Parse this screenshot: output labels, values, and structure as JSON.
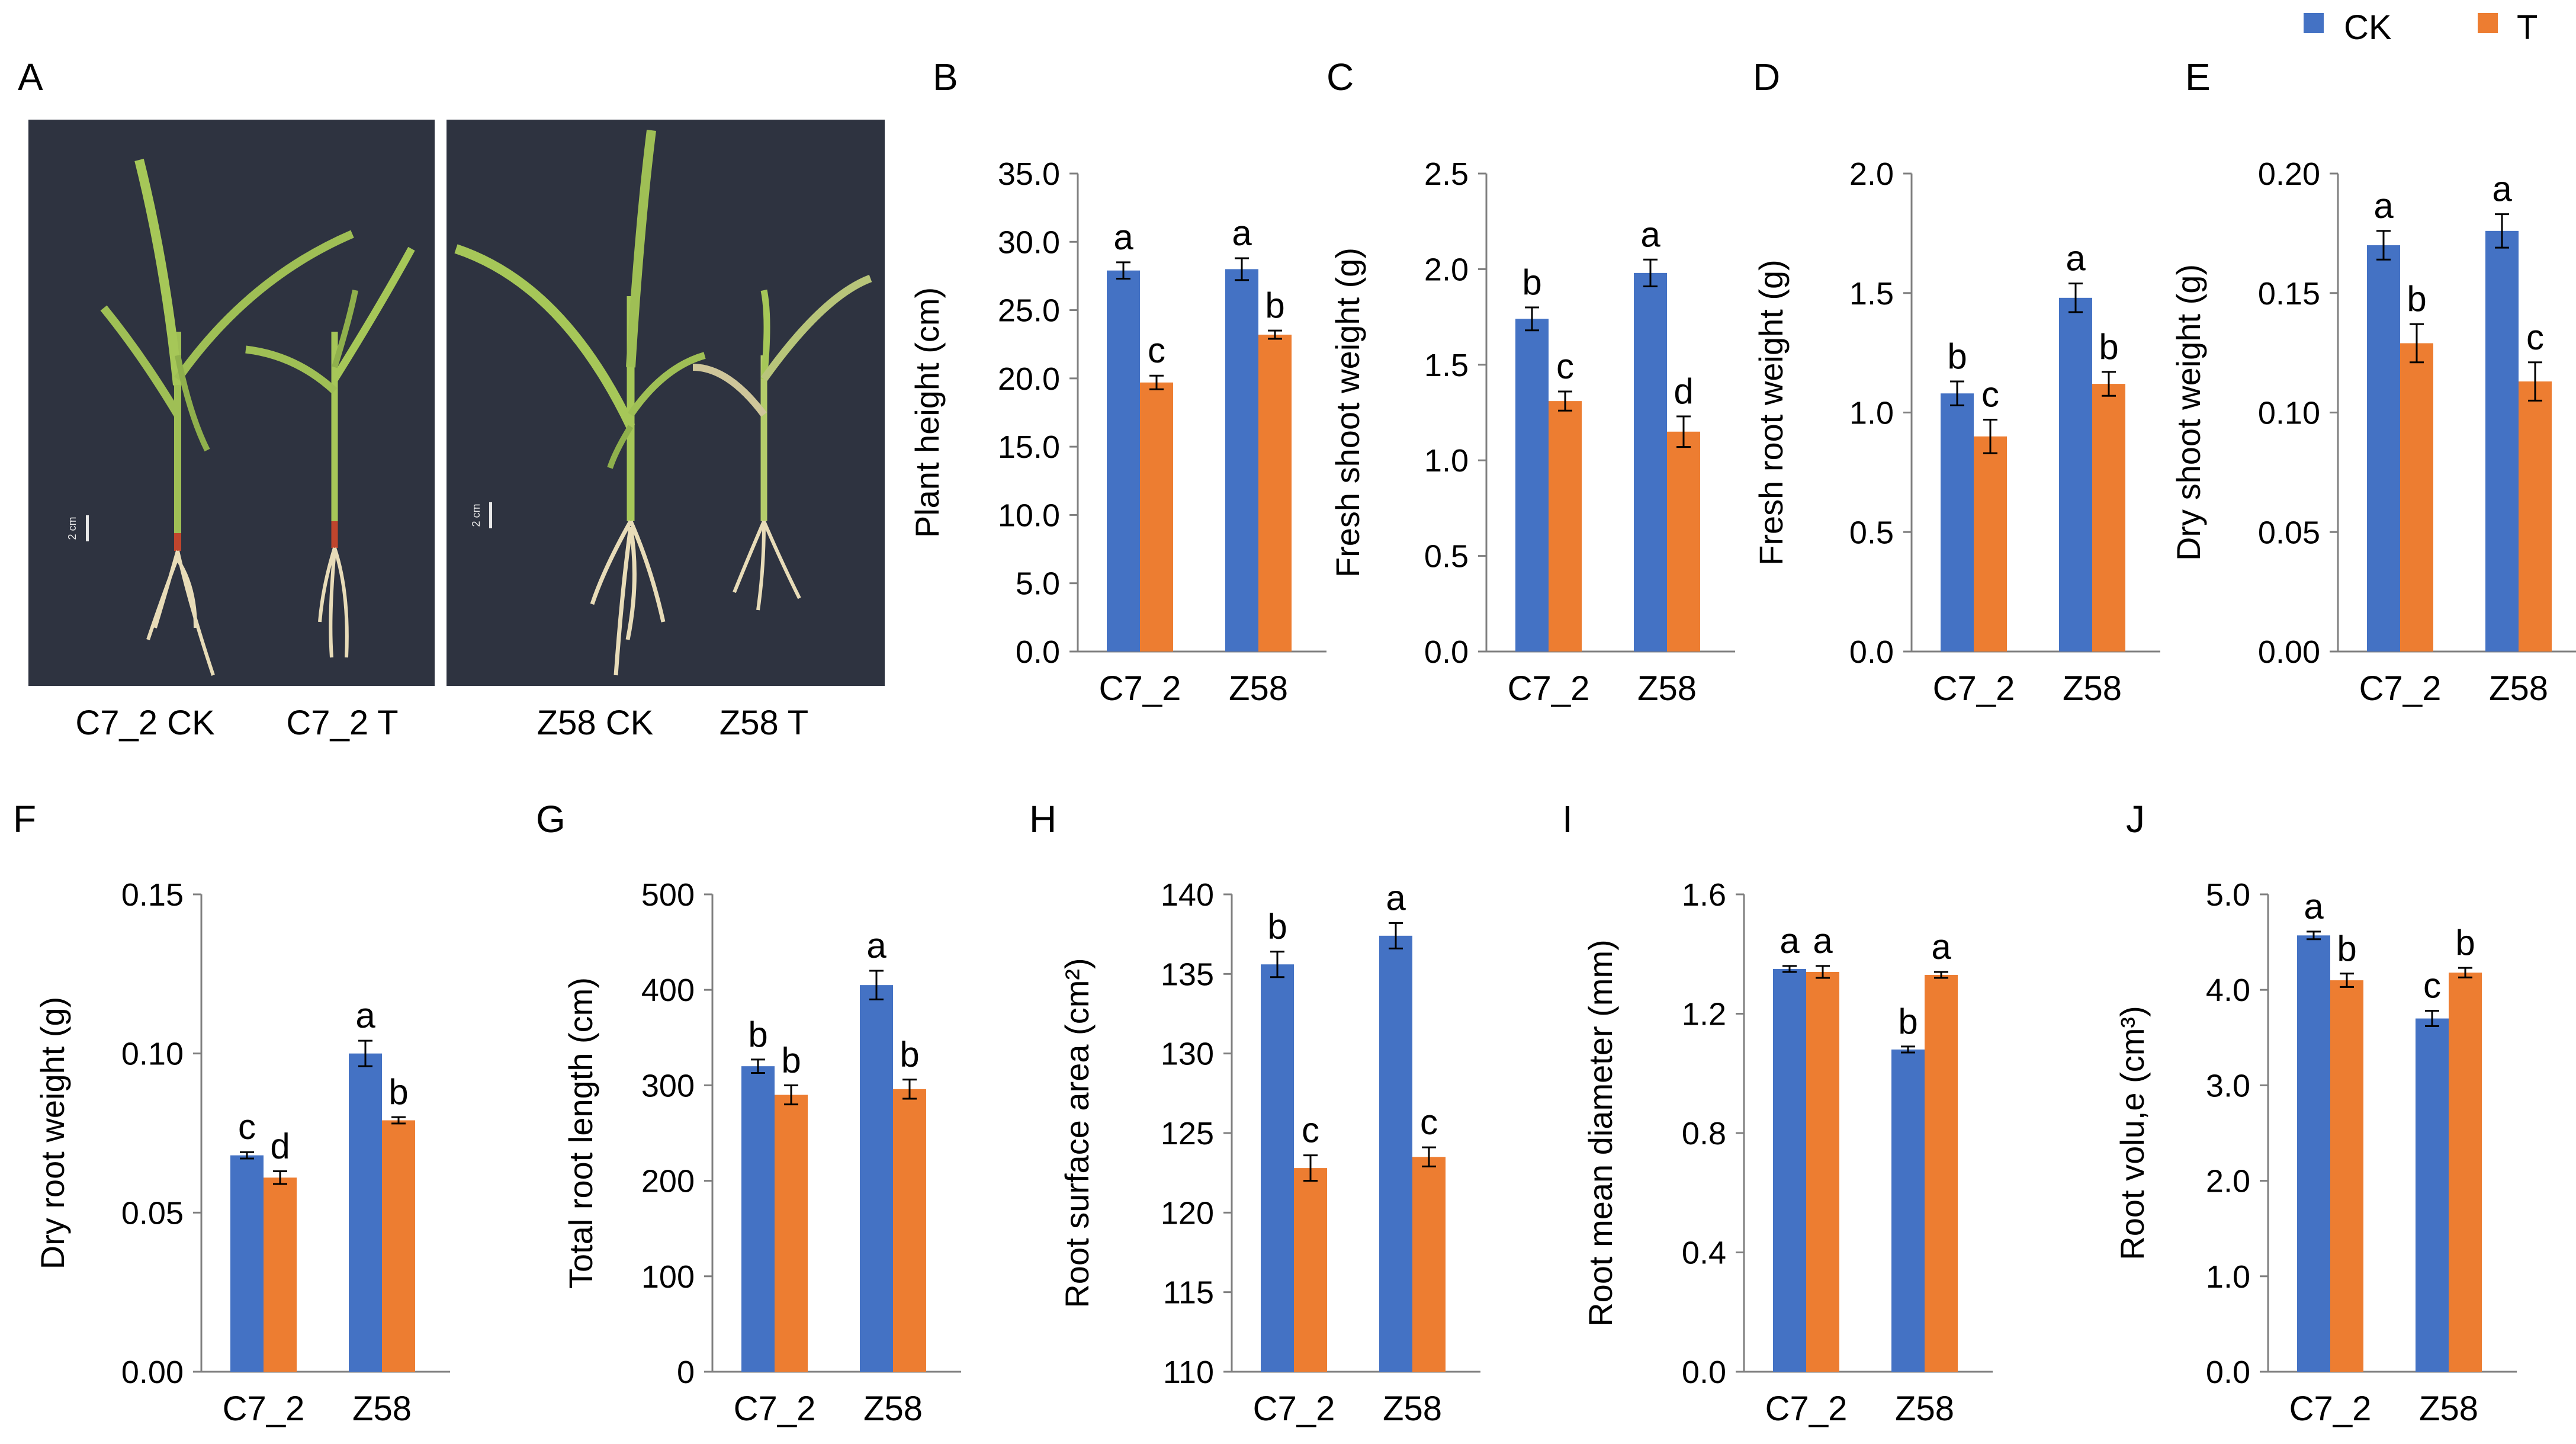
{
  "legend": {
    "items": [
      {
        "label": "CK",
        "color": "#4472C4"
      },
      {
        "label": "T",
        "color": "#ED7D31"
      }
    ],
    "position": "top-right"
  },
  "panel_a": {
    "letter": "A",
    "photos": [
      {
        "labels": [
          "C7_2 CK",
          "C7_2 T"
        ],
        "scale_label": "2 cm"
      },
      {
        "labels": [
          "Z58 CK",
          "Z58 T"
        ],
        "scale_label": "2 cm"
      }
    ],
    "background": "#2E3340"
  },
  "chart_data": [
    {
      "id": "B",
      "type": "bar",
      "categories": [
        "C7_2",
        "Z58"
      ],
      "series": [
        {
          "name": "CK",
          "values": [
            27.9,
            28.0
          ],
          "errors": [
            0.6,
            0.8
          ],
          "letters": [
            "a",
            "a"
          ]
        },
        {
          "name": "T",
          "values": [
            19.7,
            23.2
          ],
          "errors": [
            0.5,
            0.3
          ],
          "letters": [
            "c",
            "b"
          ]
        }
      ],
      "ylabel": "Plant height (cm)",
      "ylim": [
        0,
        35
      ],
      "ticks": [
        "0.0",
        "5.0",
        "10.0",
        "15.0",
        "20.0",
        "25.0",
        "30.0",
        "35.0"
      ],
      "grid": false
    },
    {
      "id": "C",
      "type": "bar",
      "categories": [
        "C7_2",
        "Z58"
      ],
      "series": [
        {
          "name": "CK",
          "values": [
            1.74,
            1.98
          ],
          "errors": [
            0.06,
            0.07
          ],
          "letters": [
            "b",
            "a"
          ]
        },
        {
          "name": "T",
          "values": [
            1.31,
            1.15
          ],
          "errors": [
            0.05,
            0.08
          ],
          "letters": [
            "c",
            "d"
          ]
        }
      ],
      "ylabel": "Fresh shoot weight (g)",
      "ylim": [
        0,
        2.5
      ],
      "ticks": [
        "0.0",
        "0.5",
        "1.0",
        "1.5",
        "2.0",
        "2.5"
      ],
      "grid": false
    },
    {
      "id": "D",
      "type": "bar",
      "categories": [
        "C7_2",
        "Z58"
      ],
      "series": [
        {
          "name": "CK",
          "values": [
            1.08,
            1.48
          ],
          "errors": [
            0.05,
            0.06
          ],
          "letters": [
            "b",
            "a"
          ]
        },
        {
          "name": "T",
          "values": [
            0.9,
            1.12
          ],
          "errors": [
            0.07,
            0.05
          ],
          "letters": [
            "c",
            "b"
          ]
        }
      ],
      "ylabel": "Fresh root weight (g)",
      "ylim": [
        0,
        2.0
      ],
      "ticks": [
        "0.0",
        "0.5",
        "1.0",
        "1.5",
        "2.0"
      ],
      "grid": false
    },
    {
      "id": "E",
      "type": "bar",
      "categories": [
        "C7_2",
        "Z58"
      ],
      "series": [
        {
          "name": "CK",
          "values": [
            0.17,
            0.176
          ],
          "errors": [
            0.006,
            0.007
          ],
          "letters": [
            "a",
            "a"
          ]
        },
        {
          "name": "T",
          "values": [
            0.129,
            0.113
          ],
          "errors": [
            0.008,
            0.008
          ],
          "letters": [
            "b",
            "c"
          ]
        }
      ],
      "ylabel": "Dry shoot weight (g)",
      "ylim": [
        0,
        0.2
      ],
      "ticks": [
        "0.00",
        "0.05",
        "0.10",
        "0.15",
        "0.20"
      ],
      "grid": false
    },
    {
      "id": "F",
      "type": "bar",
      "categories": [
        "C7_2",
        "Z58"
      ],
      "series": [
        {
          "name": "CK",
          "values": [
            0.068,
            0.1
          ],
          "errors": [
            0.001,
            0.004
          ],
          "letters": [
            "c",
            "a"
          ]
        },
        {
          "name": "T",
          "values": [
            0.061,
            0.079
          ],
          "errors": [
            0.002,
            0.001
          ],
          "letters": [
            "d",
            "b"
          ]
        }
      ],
      "ylabel": "Dry root weight (g)",
      "ylim": [
        0,
        0.15
      ],
      "ticks": [
        "0.00",
        "0.05",
        "0.10",
        "0.15"
      ],
      "grid": false
    },
    {
      "id": "G",
      "type": "bar",
      "categories": [
        "C7_2",
        "Z58"
      ],
      "series": [
        {
          "name": "CK",
          "values": [
            320,
            405
          ],
          "errors": [
            7,
            15
          ],
          "letters": [
            "b",
            "a"
          ]
        },
        {
          "name": "T",
          "values": [
            290,
            296
          ],
          "errors": [
            10,
            10
          ],
          "letters": [
            "b",
            "b"
          ]
        }
      ],
      "ylabel": "Total root length (cm)",
      "ylim": [
        0,
        500
      ],
      "ticks": [
        "0",
        "100",
        "200",
        "300",
        "400",
        "500"
      ],
      "grid": false
    },
    {
      "id": "H",
      "type": "bar",
      "categories": [
        "C7_2",
        "Z58"
      ],
      "series": [
        {
          "name": "CK",
          "values": [
            135.6,
            137.4
          ],
          "errors": [
            0.8,
            0.8
          ],
          "letters": [
            "b",
            "a"
          ]
        },
        {
          "name": "T",
          "values": [
            122.8,
            123.5
          ],
          "errors": [
            0.8,
            0.6
          ],
          "letters": [
            "c",
            "c"
          ]
        }
      ],
      "ylabel": "Root surface area (cm²)",
      "ylim": [
        110,
        140
      ],
      "ticks": [
        "110",
        "115",
        "120",
        "125",
        "130",
        "135",
        "140"
      ],
      "grid": false
    },
    {
      "id": "I",
      "type": "bar",
      "categories": [
        "C7_2",
        "Z58"
      ],
      "series": [
        {
          "name": "CK",
          "values": [
            1.35,
            1.08
          ],
          "errors": [
            0.01,
            0.01
          ],
          "letters": [
            "a",
            "b"
          ]
        },
        {
          "name": "T",
          "values": [
            1.34,
            1.33
          ],
          "errors": [
            0.02,
            0.01
          ],
          "letters": [
            "a",
            "a"
          ]
        }
      ],
      "ylabel": "Root mean diameter (mm)",
      "ylim": [
        0,
        1.6
      ],
      "ticks": [
        "0.0",
        "0.4",
        "0.8",
        "1.2",
        "1.6"
      ],
      "grid": false
    },
    {
      "id": "J",
      "type": "bar",
      "categories": [
        "C7_2",
        "Z58"
      ],
      "series": [
        {
          "name": "CK",
          "values": [
            4.57,
            3.7
          ],
          "errors": [
            0.04,
            0.08
          ],
          "letters": [
            "a",
            "c"
          ]
        },
        {
          "name": "T",
          "values": [
            4.1,
            4.18
          ],
          "errors": [
            0.07,
            0.05
          ],
          "letters": [
            "b",
            "b"
          ]
        }
      ],
      "ylabel": "Root volu,e (cm³)",
      "ylim": [
        0,
        5.0
      ],
      "ticks": [
        "0.0",
        "1.0",
        "2.0",
        "3.0",
        "4.0",
        "5.0"
      ],
      "grid": false
    }
  ]
}
